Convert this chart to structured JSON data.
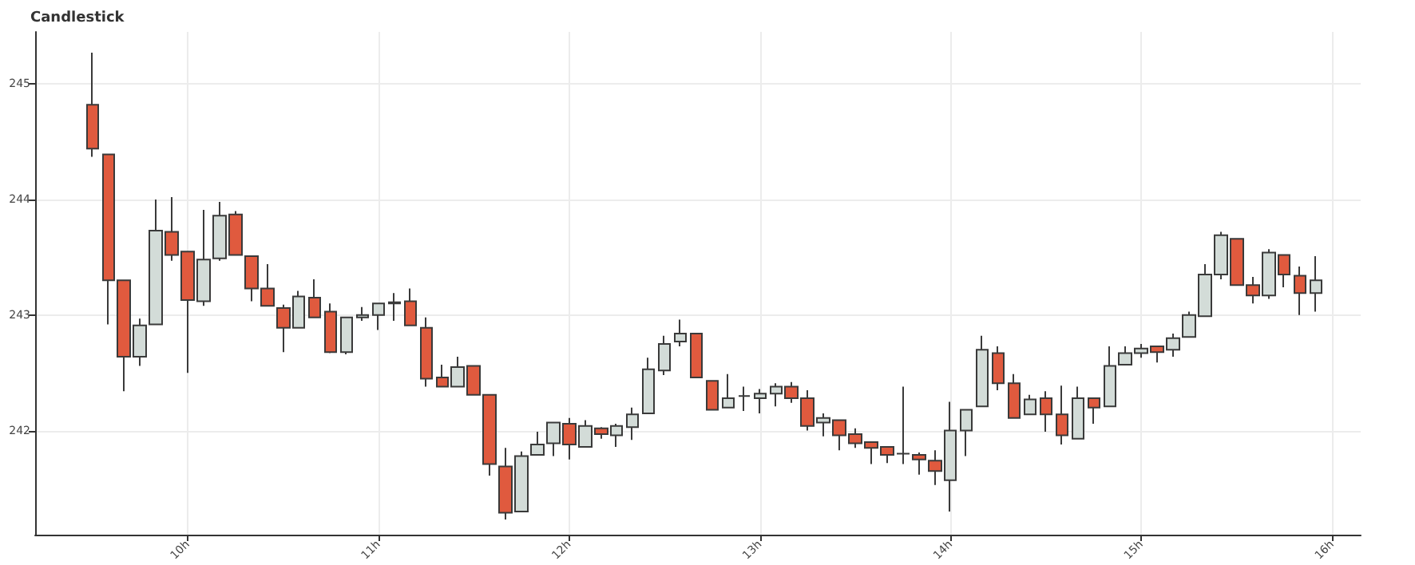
{
  "chart_data": {
    "type": "candlestick",
    "title": "Candlestick",
    "x": [
      9.5,
      9.5833,
      9.6667,
      9.75,
      9.8333,
      9.9167,
      10,
      10.0833,
      10.1667,
      10.25,
      10.3333,
      10.4167,
      10.5,
      10.5833,
      10.6667,
      10.75,
      10.8333,
      10.9167,
      11,
      11.0833,
      11.1667,
      11.25,
      11.3333,
      11.4167,
      11.5,
      11.5833,
      11.6667,
      11.75,
      11.8333,
      11.9167,
      12,
      12.0833,
      12.1667,
      12.25,
      12.3333,
      12.4167,
      12.5,
      12.5833,
      12.6667,
      12.75,
      12.8333,
      12.9167,
      13,
      13.0833,
      13.1667,
      13.25,
      13.3333,
      13.4167,
      13.5,
      13.5833,
      13.6667,
      13.75,
      13.8333,
      13.9167,
      14,
      14.0833,
      14.1667,
      14.25,
      14.3333,
      14.4167,
      14.5,
      14.5833,
      14.6667,
      14.75,
      14.8333,
      14.9167,
      15,
      15.0833,
      15.1667,
      15.25,
      15.3333,
      15.4167,
      15.5,
      15.5833,
      15.6667,
      15.75,
      15.8333,
      15.9167
    ],
    "ohlc": [
      [
        244.82,
        245.27,
        244.37,
        244.44
      ],
      [
        244.39,
        244.39,
        242.92,
        243.3
      ],
      [
        243.3,
        243.3,
        242.34,
        242.64
      ],
      [
        242.64,
        242.97,
        242.56,
        242.91
      ],
      [
        242.92,
        244.0,
        242.92,
        243.73
      ],
      [
        243.72,
        244.02,
        243.47,
        243.52
      ],
      [
        243.55,
        243.55,
        242.5,
        243.13
      ],
      [
        243.12,
        243.91,
        243.08,
        243.48
      ],
      [
        243.49,
        243.98,
        243.47,
        243.86
      ],
      [
        243.87,
        243.9,
        243.52,
        243.52
      ],
      [
        243.51,
        243.51,
        243.12,
        243.23
      ],
      [
        243.23,
        243.44,
        243.08,
        243.08
      ],
      [
        243.06,
        243.09,
        242.68,
        242.89
      ],
      [
        242.89,
        243.21,
        242.89,
        243.16
      ],
      [
        243.15,
        243.31,
        242.98,
        242.98
      ],
      [
        243.03,
        243.1,
        242.67,
        242.68
      ],
      [
        242.68,
        242.98,
        242.66,
        242.98
      ],
      [
        242.98,
        243.07,
        242.95,
        243.0
      ],
      [
        243.0,
        243.1,
        242.87,
        243.1
      ],
      [
        243.1,
        243.19,
        242.95,
        243.11
      ],
      [
        243.12,
        243.23,
        242.91,
        242.91
      ],
      [
        242.89,
        242.98,
        242.38,
        242.45
      ],
      [
        242.46,
        242.57,
        242.38,
        242.38
      ],
      [
        242.38,
        242.64,
        242.38,
        242.55
      ],
      [
        242.56,
        242.56,
        242.31,
        242.31
      ],
      [
        242.31,
        242.31,
        241.61,
        241.71
      ],
      [
        241.69,
        241.85,
        241.23,
        241.29
      ],
      [
        241.3,
        241.82,
        241.3,
        241.78
      ],
      [
        241.79,
        241.99,
        241.79,
        241.88
      ],
      [
        241.89,
        242.07,
        241.78,
        242.07
      ],
      [
        242.06,
        242.11,
        241.75,
        241.88
      ],
      [
        241.86,
        242.09,
        241.86,
        242.04
      ],
      [
        242.02,
        242.03,
        241.93,
        241.97
      ],
      [
        241.96,
        242.06,
        241.86,
        242.04
      ],
      [
        242.03,
        242.2,
        241.92,
        242.14
      ],
      [
        242.15,
        242.63,
        242.15,
        242.53
      ],
      [
        242.52,
        242.82,
        242.48,
        242.75
      ],
      [
        242.77,
        242.96,
        242.73,
        242.84
      ],
      [
        242.84,
        242.84,
        242.46,
        242.46
      ],
      [
        242.43,
        242.43,
        242.18,
        242.18
      ],
      [
        242.2,
        242.49,
        242.2,
        242.28
      ],
      [
        242.3,
        242.38,
        242.17,
        242.3
      ],
      [
        242.28,
        242.36,
        242.15,
        242.32
      ],
      [
        242.32,
        242.41,
        242.21,
        242.38
      ],
      [
        242.38,
        242.42,
        242.24,
        242.28
      ],
      [
        242.28,
        242.35,
        242.0,
        242.04
      ],
      [
        242.07,
        242.15,
        241.95,
        242.11
      ],
      [
        242.09,
        242.09,
        241.83,
        241.96
      ],
      [
        241.97,
        242.02,
        241.85,
        241.89
      ],
      [
        241.9,
        241.9,
        241.71,
        241.85
      ],
      [
        241.86,
        241.86,
        241.72,
        241.79
      ],
      [
        241.8,
        242.38,
        241.71,
        241.8
      ],
      [
        241.79,
        241.81,
        241.62,
        241.75
      ],
      [
        241.74,
        241.83,
        241.53,
        241.65
      ],
      [
        241.57,
        242.25,
        241.3,
        242.0
      ],
      [
        242.0,
        242.18,
        241.78,
        242.18
      ],
      [
        242.21,
        242.82,
        242.21,
        242.7
      ],
      [
        242.67,
        242.73,
        242.35,
        242.41
      ],
      [
        242.41,
        242.49,
        242.11,
        242.11
      ],
      [
        242.14,
        242.31,
        242.14,
        242.27
      ],
      [
        242.28,
        242.34,
        241.99,
        242.14
      ],
      [
        242.14,
        242.39,
        241.88,
        241.96
      ],
      [
        241.93,
        242.38,
        241.93,
        242.28
      ],
      [
        242.28,
        242.28,
        242.06,
        242.2
      ],
      [
        242.21,
        242.73,
        242.21,
        242.56
      ],
      [
        242.57,
        242.73,
        242.57,
        242.67
      ],
      [
        242.67,
        242.75,
        242.63,
        242.71
      ],
      [
        242.73,
        242.73,
        242.59,
        242.68
      ],
      [
        242.7,
        242.84,
        242.64,
        242.8
      ],
      [
        242.81,
        243.03,
        242.81,
        243.0
      ],
      [
        242.99,
        243.44,
        242.99,
        243.35
      ],
      [
        243.35,
        243.72,
        243.31,
        243.69
      ],
      [
        243.66,
        243.66,
        243.26,
        243.26
      ],
      [
        243.26,
        243.33,
        243.1,
        243.17
      ],
      [
        243.17,
        243.57,
        243.14,
        243.54
      ],
      [
        243.52,
        243.52,
        243.24,
        243.35
      ],
      [
        243.34,
        243.42,
        243.0,
        243.19
      ],
      [
        243.19,
        243.51,
        243.03,
        243.3
      ]
    ],
    "colors": [
      "#e05a3e",
      "#e05a3e",
      "#e05a3e",
      "#d3dcd8",
      "#d3dcd8",
      "#e05a3e",
      "#e05a3e",
      "#d3dcd8",
      "#d3dcd8",
      "#e05a3e",
      "#e05a3e",
      "#e05a3e",
      "#e05a3e",
      "#d3dcd8",
      "#e05a3e",
      "#e05a3e",
      "#d3dcd8",
      "#d3dcd8",
      "#d3dcd8",
      "#d3dcd8",
      "#e05a3e",
      "#e05a3e",
      "#e05a3e",
      "#d3dcd8",
      "#e05a3e",
      "#e05a3e",
      "#e05a3e",
      "#d3dcd8",
      "#d3dcd8",
      "#d3dcd8",
      "#e05a3e",
      "#d3dcd8",
      "#e05a3e",
      "#d3dcd8",
      "#d3dcd8",
      "#d3dcd8",
      "#d3dcd8",
      "#d3dcd8",
      "#e05a3e",
      "#e05a3e",
      "#d3dcd8",
      "#3a3a3a",
      "#d3dcd8",
      "#d3dcd8",
      "#e05a3e",
      "#e05a3e",
      "#d3dcd8",
      "#e05a3e",
      "#e05a3e",
      "#e05a3e",
      "#e05a3e",
      "#3a3a3a",
      "#e05a3e",
      "#e05a3e",
      "#d3dcd8",
      "#d3dcd8",
      "#d3dcd8",
      "#e05a3e",
      "#e05a3e",
      "#d3dcd8",
      "#e05a3e",
      "#e05a3e",
      "#d3dcd8",
      "#e05a3e",
      "#d3dcd8",
      "#d3dcd8",
      "#d3dcd8",
      "#e05a3e",
      "#d3dcd8",
      "#d3dcd8",
      "#d3dcd8",
      "#d3dcd8",
      "#e05a3e",
      "#e05a3e",
      "#d3dcd8",
      "#e05a3e",
      "#e05a3e",
      "#d3dcd8"
    ],
    "xlim": [
      9.2,
      16.15
    ],
    "xticks": [
      {
        "value": 10,
        "label": "10h"
      },
      {
        "value": 11,
        "label": "11h"
      },
      {
        "value": 12,
        "label": "12h"
      },
      {
        "value": 13,
        "label": "13h"
      },
      {
        "value": 14,
        "label": "14h"
      },
      {
        "value": 15,
        "label": "15h"
      },
      {
        "value": 16,
        "label": "16h"
      }
    ],
    "ylim": [
      241.1,
      245.45
    ],
    "yticks": [
      242,
      243,
      244,
      245
    ],
    "grid": true
  }
}
